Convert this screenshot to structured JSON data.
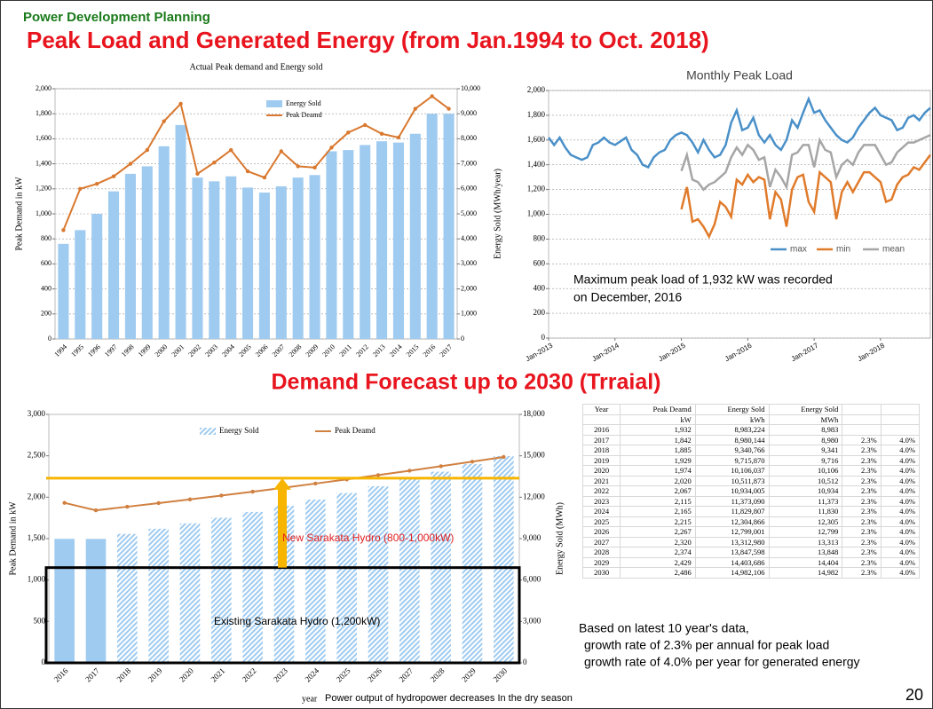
{
  "header": {
    "section": "Power Development Planning",
    "title": "Peak Load and Generated Energy (from Jan.1994 to Oct. 2018)",
    "subtitle": "Demand Forecast up to 2030 (Trraial)",
    "page": "20"
  },
  "chart_data": [
    {
      "type": "bar_line",
      "title": "Actual Peak demand and Energy sold",
      "ylabel": "Peak Demand in kW",
      "y2label": "Energy Sold (MWh/year)",
      "grid": true,
      "legend": "top",
      "categories": [
        "1994",
        "1995",
        "1996",
        "1997",
        "1998",
        "1999",
        "2000",
        "2001",
        "2002",
        "2003",
        "2004",
        "2005",
        "2006",
        "2007",
        "2008",
        "2009",
        "2010",
        "2011",
        "2012",
        "2013",
        "2014",
        "2015",
        "2016",
        "2017"
      ],
      "ylim": [
        0,
        2000
      ],
      "yticks": [
        0,
        200,
        400,
        600,
        800,
        {
          "value": 1000,
          "label": "1,000"
        },
        {
          "value": 1200,
          "label": "1,200"
        },
        {
          "value": 1400,
          "label": "1,400"
        },
        {
          "value": 1600,
          "label": "1,600"
        },
        {
          "value": 1800,
          "label": "1,800"
        },
        {
          "value": 2000,
          "label": "2,000"
        }
      ],
      "y2lim": [
        0,
        10000
      ],
      "y2ticks": [
        0,
        {
          "value": 1000,
          "label": "1,000"
        },
        {
          "value": 2000,
          "label": "2,000"
        },
        {
          "value": 3000,
          "label": "3,000"
        },
        {
          "value": 4000,
          "label": "4,000"
        },
        {
          "value": 5000,
          "label": "5,000"
        },
        {
          "value": 6000,
          "label": "6,000"
        },
        {
          "value": 7000,
          "label": "7,000"
        },
        {
          "value": 8000,
          "label": "8,000"
        },
        {
          "value": 9000,
          "label": "9,000"
        },
        {
          "value": 10000,
          "label": "10,000"
        }
      ],
      "series": [
        {
          "name": "Energy Sold",
          "type": "bar",
          "axis": "y2",
          "color": "#9fcbf0",
          "values": [
            3800,
            4350,
            5000,
            5900,
            6600,
            6900,
            7700,
            8550,
            6450,
            6300,
            6500,
            6050,
            5850,
            6100,
            6450,
            6550,
            7500,
            7550,
            7750,
            7900,
            7850,
            8200,
            9000,
            9000
          ]
        },
        {
          "name": "Peak Deamd",
          "type": "line",
          "axis": "y",
          "color": "#d9782e",
          "values": [
            870,
            1200,
            1240,
            1300,
            1400,
            1510,
            1740,
            1880,
            1320,
            1410,
            1510,
            1340,
            1290,
            1500,
            1380,
            1370,
            1530,
            1650,
            1710,
            1640,
            1610,
            1840,
            1940,
            1840
          ]
        }
      ]
    },
    {
      "type": "line",
      "title": "Monthly Peak Load",
      "grid": true,
      "legend": "right",
      "annotation": [
        "Maximum peak load of 1,932 kW  was recorded",
        "on December, 2016"
      ],
      "x": [
        "2013-01",
        "2013-02",
        "2013-03",
        "2013-04",
        "2013-05",
        "2013-06",
        "2013-07",
        "2013-08",
        "2013-09",
        "2013-10",
        "2013-11",
        "2013-12",
        "2014-01",
        "2014-02",
        "2014-03",
        "2014-04",
        "2014-05",
        "2014-06",
        "2014-07",
        "2014-08",
        "2014-09",
        "2014-10",
        "2014-11",
        "2014-12",
        "2015-01",
        "2015-02",
        "2015-03",
        "2015-04",
        "2015-05",
        "2015-06",
        "2015-07",
        "2015-08",
        "2015-09",
        "2015-10",
        "2015-11",
        "2015-12",
        "2016-01",
        "2016-02",
        "2016-03",
        "2016-04",
        "2016-05",
        "2016-06",
        "2016-07",
        "2016-08",
        "2016-09",
        "2016-10",
        "2016-11",
        "2016-12",
        "2017-01",
        "2017-02",
        "2017-03",
        "2017-04",
        "2017-05",
        "2017-06",
        "2017-07",
        "2017-08",
        "2017-09",
        "2017-10",
        "2017-11",
        "2017-12",
        "2018-01",
        "2018-02",
        "2018-03",
        "2018-04",
        "2018-05",
        "2018-06",
        "2018-07",
        "2018-08",
        "2018-09",
        "2018-10"
      ],
      "xlim": [
        "2013-01",
        "2018-10"
      ],
      "xticks": [
        {
          "value": "2013-01",
          "label": "Jan-2013"
        },
        {
          "value": "2014-01",
          "label": "Jan-2014"
        },
        {
          "value": "2015-01",
          "label": "Jan-2015"
        },
        {
          "value": "2016-01",
          "label": "Jan-2016"
        },
        {
          "value": "2017-01",
          "label": "Jan-2017"
        },
        {
          "value": "2018-01",
          "label": "Jan-2018"
        }
      ],
      "ylim": [
        0,
        2000
      ],
      "yticks": [
        0,
        200,
        400,
        600,
        800,
        {
          "value": 1000,
          "label": "1,000"
        },
        {
          "value": 1200,
          "label": "1,200"
        },
        {
          "value": 1400,
          "label": "1,400"
        },
        {
          "value": 1600,
          "label": "1,600"
        },
        {
          "value": 1800,
          "label": "1,800"
        },
        {
          "value": 2000,
          "label": "2,000"
        }
      ],
      "series": [
        {
          "name": "max",
          "color": "#4a90c8",
          "values": [
            1620,
            1560,
            1620,
            1540,
            1480,
            1460,
            1440,
            1460,
            1560,
            1580,
            1620,
            1580,
            1560,
            1590,
            1620,
            1520,
            1480,
            1400,
            1380,
            1460,
            1500,
            1520,
            1600,
            1640,
            1660,
            1640,
            1580,
            1500,
            1600,
            1520,
            1460,
            1480,
            1560,
            1740,
            1840,
            1680,
            1700,
            1780,
            1640,
            1580,
            1640,
            1560,
            1520,
            1600,
            1760,
            1700,
            1820,
            1932,
            1820,
            1840,
            1760,
            1700,
            1640,
            1600,
            1580,
            1620,
            1700,
            1760,
            1820,
            1860,
            1800,
            1780,
            1760,
            1680,
            1700,
            1780,
            1800,
            1760,
            1820,
            1860
          ]
        },
        {
          "name": "min",
          "color": "#e07b2b",
          "values": [
            null,
            null,
            null,
            null,
            null,
            null,
            null,
            null,
            null,
            null,
            null,
            null,
            null,
            null,
            null,
            null,
            null,
            null,
            null,
            null,
            null,
            null,
            null,
            null,
            1040,
            1220,
            940,
            960,
            900,
            820,
            920,
            1100,
            1060,
            980,
            1280,
            1240,
            1320,
            1260,
            1300,
            1280,
            960,
            1180,
            1120,
            900,
            1200,
            1300,
            1320,
            1100,
            1020,
            1340,
            1300,
            1260,
            960,
            1180,
            1260,
            1180,
            1260,
            1340,
            1340,
            1300,
            1260,
            1100,
            1120,
            1240,
            1300,
            1320,
            1380,
            1360,
            1420,
            1480
          ]
        },
        {
          "name": "mean",
          "color": "#a6a6a6",
          "values": [
            null,
            null,
            null,
            null,
            null,
            null,
            null,
            null,
            null,
            null,
            null,
            null,
            null,
            null,
            null,
            null,
            null,
            null,
            null,
            null,
            null,
            null,
            null,
            null,
            1350,
            1480,
            1280,
            1260,
            1200,
            1240,
            1260,
            1300,
            1340,
            1460,
            1540,
            1480,
            1560,
            1520,
            1440,
            1460,
            1220,
            1360,
            1300,
            1220,
            1480,
            1500,
            1560,
            1560,
            1380,
            1600,
            1520,
            1500,
            1300,
            1400,
            1440,
            1400,
            1500,
            1560,
            1560,
            1560,
            1480,
            1400,
            1420,
            1500,
            1540,
            1580,
            1580,
            1600,
            1620,
            1640
          ]
        }
      ]
    },
    {
      "type": "bar_line",
      "ylabel": "Peak Demand in kW",
      "y2label": "Energy Sold (MWh)",
      "xlabel": "year",
      "grid": false,
      "legend": "top",
      "categories": [
        "2016",
        "2017",
        "2018",
        "2019",
        "2020",
        "2021",
        "2022",
        "2023",
        "2024",
        "2025",
        "2026",
        "2027",
        "2028",
        "2029",
        "2030"
      ],
      "ylim": [
        0,
        3000
      ],
      "yticks": [
        0,
        500,
        {
          "value": 1000,
          "label": "1,000"
        },
        {
          "value": 1500,
          "label": "1,500"
        },
        {
          "value": 2000,
          "label": "2,000"
        },
        {
          "value": 2500,
          "label": "2,500"
        },
        {
          "value": 3000,
          "label": "3,000"
        }
      ],
      "y2lim": [
        0,
        18000
      ],
      "y2ticks": [
        0,
        {
          "value": 3000,
          "label": "3,000"
        },
        {
          "value": 6000,
          "label": "6,000"
        },
        {
          "value": 9000,
          "label": "9,000"
        },
        {
          "value": 12000,
          "label": "12,000"
        },
        {
          "value": 15000,
          "label": "15,000"
        },
        {
          "value": 18000,
          "label": "18,000"
        }
      ],
      "series": [
        {
          "name": "Energy Sold",
          "type": "bar",
          "axis": "y2",
          "color": "#9fcbf0",
          "fill_patterns": [
            "solid",
            "solid",
            "hatched",
            "hatched",
            "hatched",
            "hatched",
            "hatched",
            "hatched",
            "hatched",
            "hatched",
            "hatched",
            "hatched",
            "hatched",
            "hatched",
            "hatched"
          ],
          "values": [
            8983,
            8980,
            9341,
            9716,
            10106,
            10512,
            10934,
            11373,
            11830,
            12305,
            12799,
            13313,
            13848,
            14404,
            14982
          ]
        },
        {
          "name": "Peak Deamd",
          "type": "line",
          "axis": "y",
          "color": "#d08040",
          "values": [
            1932,
            1842,
            1885,
            1929,
            1974,
            2020,
            2067,
            2115,
            2165,
            2215,
            2267,
            2320,
            2374,
            2429,
            2486
          ]
        }
      ],
      "reference_line": {
        "value": 2230,
        "color": "#f7b500"
      },
      "capacity_box": {
        "top": 1150,
        "color": "#000000"
      },
      "annotations": [
        {
          "text": "New Sarakata Hydro (800-1,000kW)",
          "color": "#e02020"
        },
        {
          "text": "Existing Sarakata Hydro (1,200kW)",
          "color": "#000000"
        }
      ]
    }
  ],
  "table": {
    "header": [
      [
        "Year",
        "Peak Deamd",
        "Energy Sold",
        "Energy Sold"
      ],
      [
        "",
        "kW",
        "kWh",
        "MWh"
      ]
    ],
    "rows": [
      [
        "2016",
        "1,932",
        "8,983,224",
        "8,983",
        "",
        ""
      ],
      [
        "2017",
        "1,842",
        "8,980,144",
        "8,980",
        "2.3%",
        "4.0%"
      ],
      [
        "2018",
        "1,885",
        "9,340,766",
        "9,341",
        "2.3%",
        "4.0%"
      ],
      [
        "2019",
        "1,929",
        "9,715,870",
        "9,716",
        "2.3%",
        "4.0%"
      ],
      [
        "2020",
        "1,974",
        "10,106,037",
        "10,106",
        "2.3%",
        "4.0%"
      ],
      [
        "2021",
        "2,020",
        "10,511,873",
        "10,512",
        "2.3%",
        "4.0%"
      ],
      [
        "2022",
        "2,067",
        "10,934,005",
        "10,934",
        "2.3%",
        "4.0%"
      ],
      [
        "2023",
        "2,115",
        "11,373,090",
        "11,373",
        "2.3%",
        "4.0%"
      ],
      [
        "2024",
        "2,165",
        "11,829,807",
        "11,830",
        "2.3%",
        "4.0%"
      ],
      [
        "2025",
        "2,215",
        "12,304,866",
        "12,305",
        "2.3%",
        "4.0%"
      ],
      [
        "2026",
        "2,267",
        "12,799,001",
        "12,799",
        "2.3%",
        "4.0%"
      ],
      [
        "2027",
        "2,320",
        "13,312,980",
        "13,313",
        "2.3%",
        "4.0%"
      ],
      [
        "2028",
        "2,374",
        "13,847,598",
        "13,848",
        "2.3%",
        "4.0%"
      ],
      [
        "2029",
        "2,429",
        "14,403,686",
        "14,404",
        "2.3%",
        "4.0%"
      ],
      [
        "2030",
        "2,486",
        "14,982,106",
        "14,982",
        "2.3%",
        "4.0%"
      ]
    ]
  },
  "notes": [
    "Based on latest 10 year's data,",
    "growth rate of 2.3% per annual for peak load",
    "growth rate of 4.0% per year for generated energy"
  ],
  "footer": "Power output of hydropower decreases In the dry season"
}
